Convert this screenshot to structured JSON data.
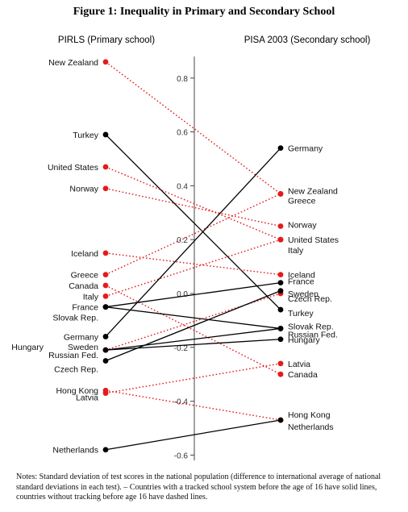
{
  "title": "Figure 1: Inequality in Primary and Secondary School",
  "notes": "Notes: Standard deviation of test scores in the national population (difference to international average of national standard deviations in each test). – Countries with a tracked school system before the age of 16 have solid lines, countries without tracking before age 16 have dashed lines.",
  "chart_data": {
    "type": "line",
    "title": "Figure 1: Inequality in Primary and Secondary School",
    "left_label": "PIRLS (Primary school)",
    "right_label": "PISA 2003 (Secondary school)",
    "ylim": [
      -0.62,
      0.88
    ],
    "yticks": [
      -0.6,
      -0.4,
      -0.2,
      0.0,
      0.2,
      0.4,
      0.6,
      0.8
    ],
    "ytick_labels": [
      "-0.6",
      "-0.4",
      "-0.2",
      "0.0",
      "0.2",
      "0.4",
      "0.6",
      "0.8"
    ],
    "colors": {
      "tracked": "#000000",
      "untracked": "#e41a1c"
    },
    "series": [
      {
        "name": "New Zealand",
        "tracked": false,
        "pirls": 0.86,
        "pisa": 0.37
      },
      {
        "name": "Turkey",
        "tracked": true,
        "pirls": 0.59,
        "pisa": -0.06
      },
      {
        "name": "United States",
        "tracked": false,
        "pirls": 0.47,
        "pisa": 0.2
      },
      {
        "name": "Norway",
        "tracked": false,
        "pirls": 0.39,
        "pisa": 0.25
      },
      {
        "name": "Iceland",
        "tracked": false,
        "pirls": 0.15,
        "pisa": 0.07
      },
      {
        "name": "Greece",
        "tracked": false,
        "pirls": 0.07,
        "pisa": 0.37
      },
      {
        "name": "Canada",
        "tracked": false,
        "pirls": 0.03,
        "pisa": -0.3
      },
      {
        "name": "Italy",
        "tracked": false,
        "pirls": -0.01,
        "pisa": 0.2
      },
      {
        "name": "France",
        "tracked": true,
        "pirls": -0.05,
        "pisa": 0.04
      },
      {
        "name": "Slovak Rep.",
        "tracked": true,
        "pirls": -0.05,
        "pisa": -0.13
      },
      {
        "name": "Germany",
        "tracked": true,
        "pirls": -0.16,
        "pisa": 0.54
      },
      {
        "name": "Hungary",
        "tracked": true,
        "pirls": -0.21,
        "pisa": -0.17
      },
      {
        "name": "Sweden",
        "tracked": false,
        "pirls": -0.21,
        "pisa": 0.0
      },
      {
        "name": "Russian Fed.",
        "tracked": true,
        "pirls": -0.21,
        "pisa": -0.13
      },
      {
        "name": "Czech Rep.",
        "tracked": true,
        "pirls": -0.25,
        "pisa": 0.01
      },
      {
        "name": "Hong Kong",
        "tracked": false,
        "pirls": -0.36,
        "pisa": -0.47
      },
      {
        "name": "Latvia",
        "tracked": false,
        "pirls": -0.37,
        "pisa": -0.26
      },
      {
        "name": "Netherlands",
        "tracked": true,
        "pirls": -0.58,
        "pisa": -0.47
      }
    ],
    "left_labels": [
      {
        "text": "New Zealand",
        "v": 0.86,
        "dy": 0
      },
      {
        "text": "Turkey",
        "v": 0.59,
        "dy": 0
      },
      {
        "text": "United States",
        "v": 0.47,
        "dy": 0
      },
      {
        "text": "Norway",
        "v": 0.39,
        "dy": 0
      },
      {
        "text": "Iceland",
        "v": 0.15,
        "dy": 0
      },
      {
        "text": "Greece",
        "v": 0.07,
        "dy": 0
      },
      {
        "text": "Canada",
        "v": 0.03,
        "dy": 0
      },
      {
        "text": "Italy",
        "v": -0.01,
        "dy": 0
      },
      {
        "text": "France",
        "v": -0.05,
        "dy": 0
      },
      {
        "text": "Slovak Rep.",
        "v": -0.05,
        "dy": 13
      },
      {
        "text": "Germany",
        "v": -0.16,
        "dy": 0
      },
      {
        "text": "Hungary",
        "v": -0.21,
        "dy": -4,
        "x": -68
      },
      {
        "text": "Sweden",
        "v": -0.21,
        "dy": -4
      },
      {
        "text": "Russian Fed.",
        "v": -0.21,
        "dy": 6
      },
      {
        "text": "Czech Rep.",
        "v": -0.25,
        "dy": 10
      },
      {
        "text": "Hong Kong",
        "v": -0.36,
        "dy": 0
      },
      {
        "text": "Latvia",
        "v": -0.37,
        "dy": 5
      },
      {
        "text": "Netherlands",
        "v": -0.58,
        "dy": 0
      }
    ],
    "right_labels": [
      {
        "text": "Germany",
        "v": 0.54,
        "dy": 0
      },
      {
        "text": "New Zealand",
        "v": 0.37,
        "dy": -4
      },
      {
        "text": "Greece",
        "v": 0.37,
        "dy": 8
      },
      {
        "text": "Norway",
        "v": 0.25,
        "dy": -2
      },
      {
        "text": "United States",
        "v": 0.2,
        "dy": 0
      },
      {
        "text": "Italy",
        "v": 0.2,
        "dy": 13
      },
      {
        "text": "Iceland",
        "v": 0.07,
        "dy": 0
      },
      {
        "text": "France",
        "v": 0.04,
        "dy": -2
      },
      {
        "text": "Sweden",
        "v": 0.0,
        "dy": 0
      },
      {
        "text": "Czech Rep.",
        "v": 0.0,
        "dy": 6
      },
      {
        "text": "Turkey",
        "v": -0.06,
        "dy": 4
      },
      {
        "text": "Slovak Rep.",
        "v": -0.13,
        "dy": -3
      },
      {
        "text": "Russian Fed.",
        "v": -0.13,
        "dy": 7
      },
      {
        "text": "Hungary",
        "v": -0.17,
        "dy": 0
      },
      {
        "text": "Latvia",
        "v": -0.26,
        "dy": 0
      },
      {
        "text": "Canada",
        "v": -0.3,
        "dy": 0
      },
      {
        "text": "Hong Kong",
        "v": -0.47,
        "dy": -7
      },
      {
        "text": "Netherlands",
        "v": -0.47,
        "dy": 8
      }
    ]
  }
}
